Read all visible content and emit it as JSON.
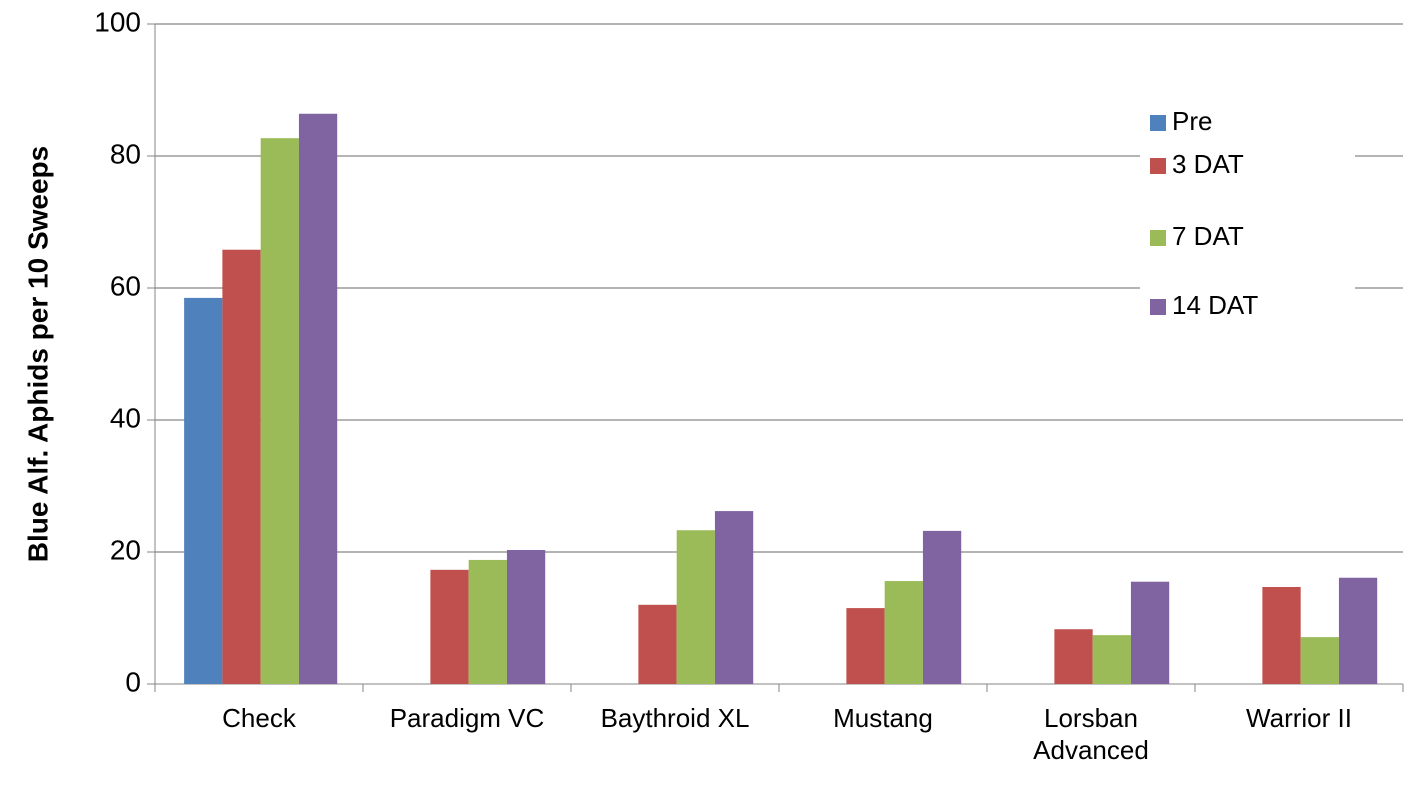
{
  "chart_data": {
    "type": "bar",
    "y_label": "Blue Alf. Aphids per 10 Sweeps",
    "categories": [
      "Check",
      "Paradigm VC",
      "Baythroid XL",
      "Mustang",
      "Lorsban Advanced",
      "Warrior II"
    ],
    "series": [
      {
        "name": "Pre",
        "color": "#4f81bd",
        "values": [
          58.5,
          null,
          null,
          null,
          null,
          null
        ]
      },
      {
        "name": "3 DAT",
        "color": "#c0504d",
        "values": [
          65.8,
          17.3,
          12.0,
          11.5,
          8.3,
          14.7
        ]
      },
      {
        "name": "7 DAT",
        "color": "#9bbb59",
        "values": [
          82.7,
          18.8,
          23.3,
          15.6,
          7.4,
          7.1
        ]
      },
      {
        "name": "14 DAT",
        "color": "#8064a2",
        "values": [
          86.4,
          20.3,
          26.2,
          23.2,
          15.5,
          16.1
        ]
      }
    ],
    "ylim": [
      0,
      100
    ],
    "yticks": [
      0,
      20,
      40,
      60,
      80,
      100
    ],
    "grid": true,
    "legend": "right"
  }
}
